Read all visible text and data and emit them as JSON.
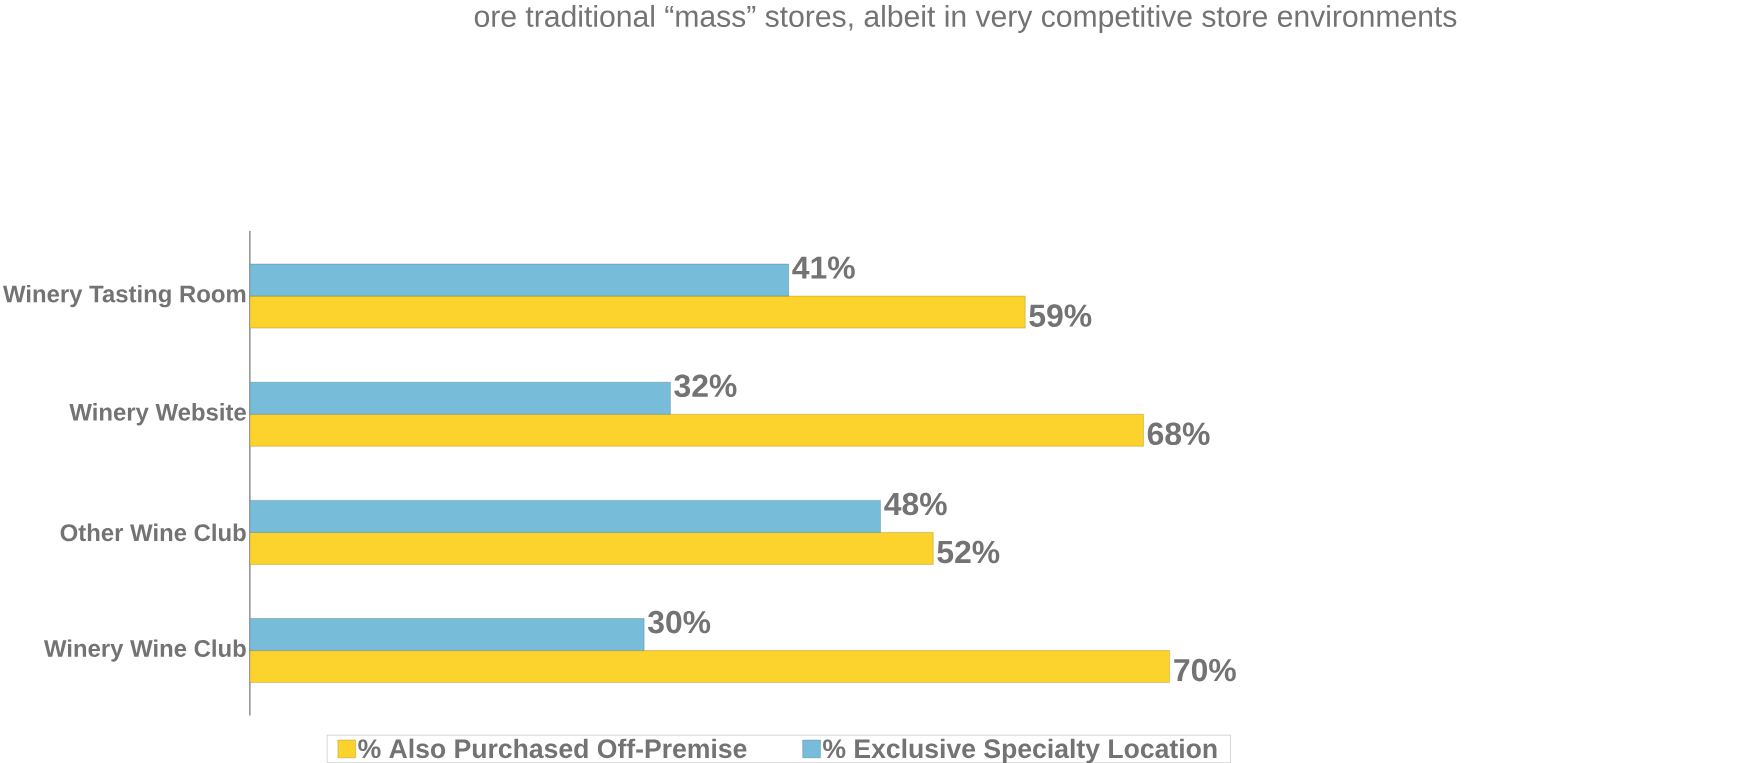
{
  "chart_data": {
    "type": "bar",
    "orientation": "horizontal",
    "categories": [
      "Winery Tasting Room",
      "Winery Website",
      "Other Wine Club",
      "Winery Wine Club"
    ],
    "series": [
      {
        "name": "% Also Purchased Off-Premise",
        "color": "#fcd22c",
        "values": [
          59,
          68,
          52,
          70
        ],
        "value_labels": [
          "59%",
          "68%",
          "52%",
          "70%"
        ]
      },
      {
        "name": "% Exclusive Specialty Location",
        "color": "#77bdd9",
        "values": [
          41,
          32,
          48,
          30
        ],
        "value_labels": [
          "41%",
          "32%",
          "48%",
          "30%"
        ]
      }
    ],
    "legend": "bottom",
    "annotations": [
      "ore traditional “mass” stores, albeit in very competitive store environments"
    ]
  }
}
